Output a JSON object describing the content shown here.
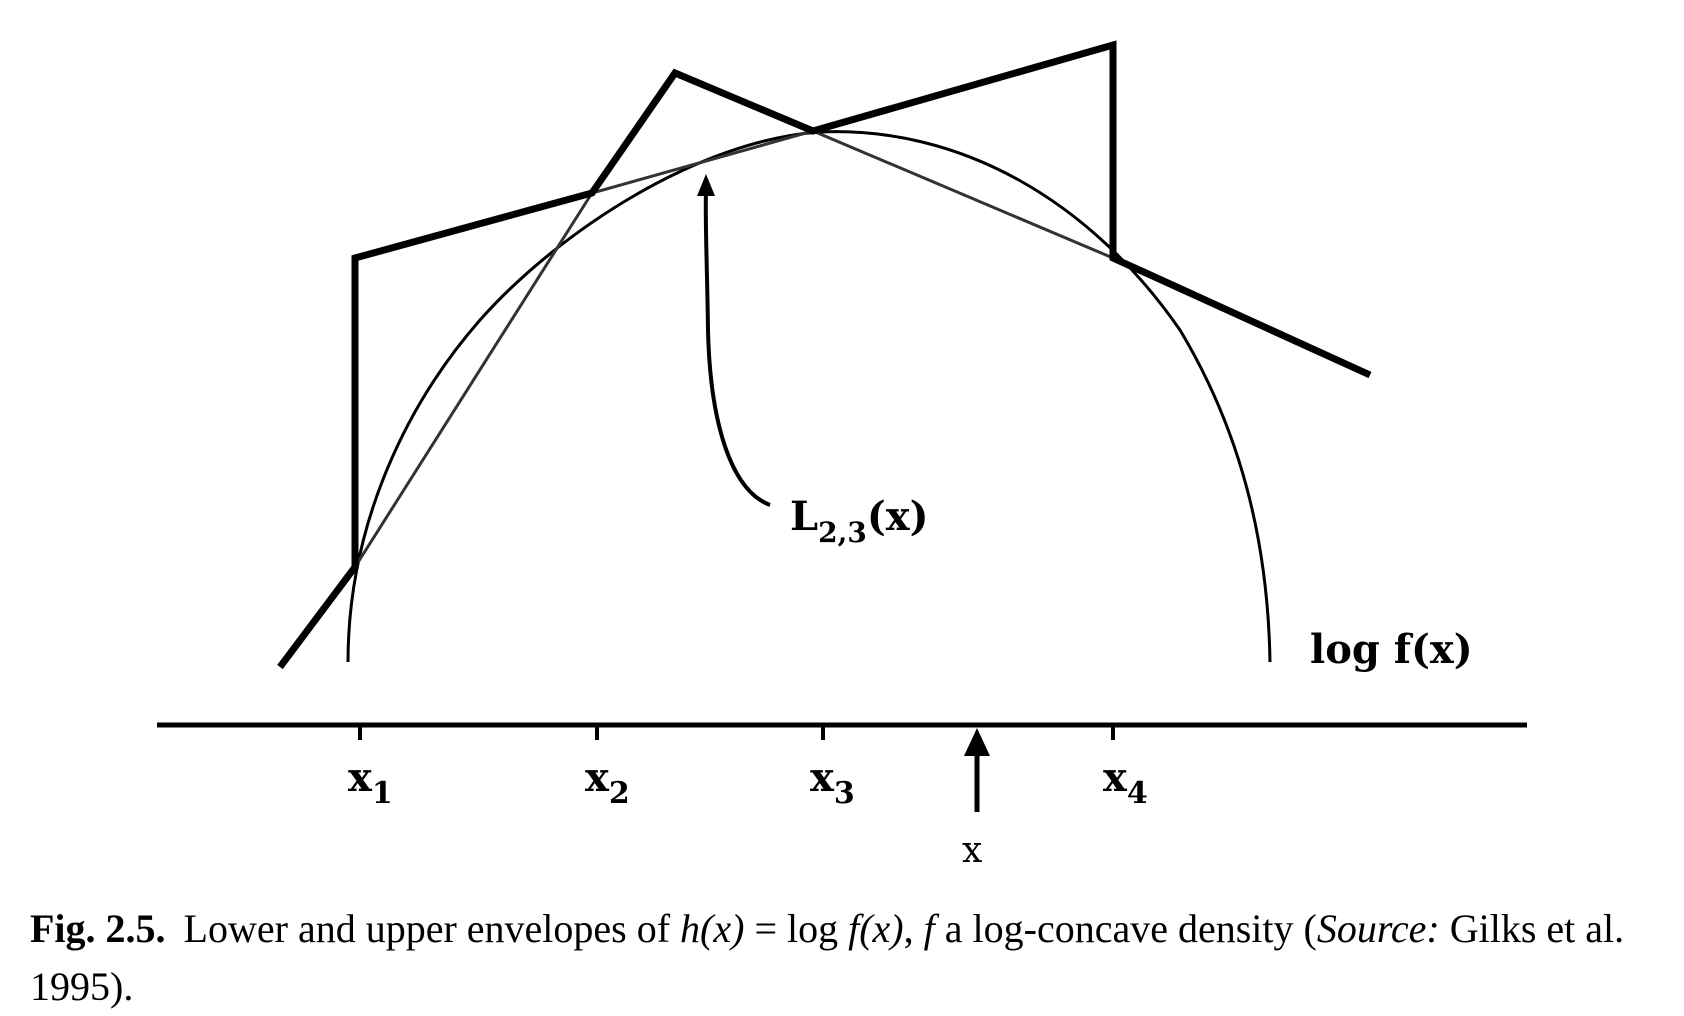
{
  "labels": {
    "lower_envelope": {
      "main": "L",
      "sub": "2,3",
      "arg": "(x)"
    },
    "curve": "log f(x)",
    "ticks": [
      {
        "main": "x",
        "sub": "1"
      },
      {
        "main": "x",
        "sub": "2"
      },
      {
        "main": "x",
        "sub": "3"
      },
      {
        "main": "x",
        "sub": "4"
      }
    ],
    "sample_point": "x"
  },
  "caption": {
    "figure_label": "Fig. 2.5.",
    "text_1": "Lower and upper envelopes of ",
    "formula_h": "h(x)",
    "equals": " = log ",
    "formula_f": "f(x)",
    "text_2": ", ",
    "f_symbol": "f",
    "text_3": " a log-concave density (",
    "source_label": "Source:",
    "text_4": " Gilks et al. 1995)."
  }
}
